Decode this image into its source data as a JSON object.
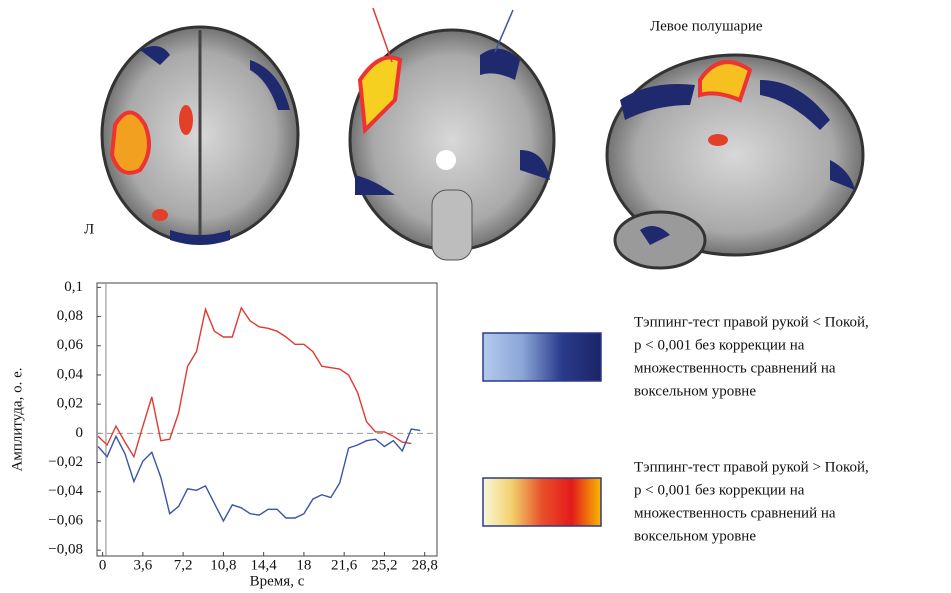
{
  "brain_panel": {
    "hemisphere_label": "Левое полушарие",
    "side_label": "Л"
  },
  "chart_data": {
    "type": "line",
    "ylabel": "Амплитуда, о. е.",
    "xlabel": "Время, с",
    "x": [
      -0.4,
      0.4,
      1.2,
      2,
      2.8,
      3.6,
      4.4,
      5.2,
      6,
      6.8,
      7.6,
      8.4,
      9.2,
      10,
      10.8,
      11.6,
      12.4,
      13.2,
      14,
      14.8,
      15.6,
      16.4,
      17.2,
      18,
      18.8,
      19.6,
      20.4,
      21.2,
      22,
      22.8,
      23.6,
      24.4,
      25.2,
      26,
      26.8,
      27.6,
      28.4
    ],
    "series": [
      {
        "color": "#e03a32",
        "values": [
          -0.002,
          -0.008,
          0.005,
          -0.006,
          -0.016,
          0.005,
          0.025,
          -0.005,
          -0.004,
          0.014,
          0.046,
          0.056,
          0.085,
          0.07,
          0.066,
          0.066,
          0.086,
          0.077,
          0.073,
          0.072,
          0.07,
          0.066,
          0.061,
          0.061,
          0.056,
          0.046,
          0.045,
          0.044,
          0.04,
          0.028,
          0.008,
          0.001,
          0.001,
          -0.002,
          -0.006,
          -0.007,
          null
        ]
      },
      {
        "color": "#3a55a4",
        "values": [
          -0.009,
          -0.016,
          -0.002,
          -0.014,
          -0.033,
          -0.019,
          -0.013,
          -0.03,
          -0.055,
          -0.05,
          -0.038,
          -0.039,
          -0.036,
          -0.048,
          -0.06,
          -0.049,
          -0.051,
          -0.055,
          -0.056,
          -0.052,
          -0.052,
          -0.058,
          -0.058,
          -0.055,
          -0.045,
          -0.042,
          -0.044,
          -0.034,
          -0.01,
          -0.008,
          -0.005,
          -0.004,
          -0.009,
          -0.005,
          -0.012,
          0.003,
          0.002
        ]
      }
    ],
    "xlim": [
      -0.5,
      29.9
    ],
    "ylim": [
      -0.084,
      0.103
    ],
    "xticks": [
      0,
      {
        "value": 3.6,
        "label": "3,6"
      },
      {
        "value": 7.2,
        "label": "7,2"
      },
      {
        "value": 10.8,
        "label": "10,8"
      },
      {
        "value": 14.4,
        "label": "14,4"
      },
      18,
      {
        "value": 21.6,
        "label": "21,6"
      },
      {
        "value": 25.2,
        "label": "25,2"
      },
      {
        "value": 28.8,
        "label": "28,8"
      }
    ],
    "yticks": [
      {
        "value": 0.1,
        "label": "0,1"
      },
      {
        "value": 0.08,
        "label": "0,08"
      },
      {
        "value": 0.06,
        "label": "0,06"
      },
      {
        "value": 0.04,
        "label": "0,04"
      },
      {
        "value": 0.02,
        "label": "0,02"
      },
      0,
      {
        "value": -0.02,
        "label": "−0,02"
      },
      {
        "value": -0.04,
        "label": "−0,04"
      },
      {
        "value": -0.06,
        "label": "−0,06"
      },
      {
        "value": -0.08,
        "label": "−0,08"
      }
    ],
    "marker_line_x": 0.3,
    "zero_line": true,
    "grid": false
  },
  "legend": [
    {
      "colors": [
        "#b4cbec",
        "#8aa6d8",
        "#2a3b8c",
        "#1b2466"
      ],
      "lines": [
        "Тэппинг-тест правой рукой < Покой,",
        "p < 0,001 без коррекции на",
        "множественность сравнений на",
        "воксельном уровне"
      ]
    },
    {
      "colors": [
        "#f8f8d8",
        "#f2cf6a",
        "#e8502a",
        "#e31b1b",
        "#f8b800"
      ],
      "lines": [
        "Тэппинг-тест правой рукой > Покой,",
        "p < 0,001 без коррекции на",
        "множественность сравнений на",
        "воксельном уровне"
      ]
    }
  ]
}
